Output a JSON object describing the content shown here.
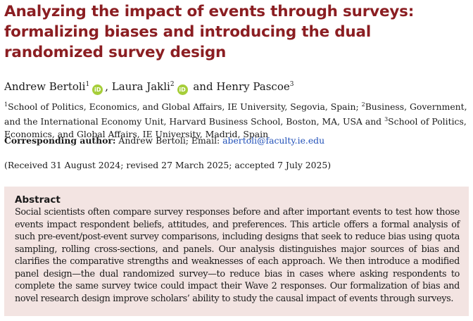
{
  "title": "Analyzing the impact of events through surveys: formalizing biases and introducing the dual randomized survey design",
  "authors": [
    {
      "name": "Andrew Bertoli",
      "sup": "1",
      "orcid": "iD",
      "sep": ", "
    },
    {
      "name": "Laura Jakli",
      "sup": "2",
      "orcid": "iD",
      "sep": " and "
    },
    {
      "name": "Henry Pascoe",
      "sup": "3",
      "orcid": "",
      "sep": ""
    }
  ],
  "affiliations": [
    {
      "sup": "1",
      "text": "School of Politics, Economics, and Global Affairs, IE University, Segovia, Spain; "
    },
    {
      "sup": "2",
      "text": "Business, Government, and the International Economy Unit, Harvard Business School, Boston, MA, USA and "
    },
    {
      "sup": "3",
      "text": "School of Politics, Economics, and Global Affairs, IE University, Madrid, Spain"
    }
  ],
  "corresponding": {
    "label": "Corresponding author:",
    "text": " Andrew Bertoli; Email: ",
    "email": "abertoli@faculty.ie.edu"
  },
  "received": "(Received 31 August 2024; revised 27 March 2025; accepted 7 July 2025)",
  "abstract": {
    "heading": "Abstract",
    "text": "Social scientists often compare survey responses before and after important events to test how those events impact respondent beliefs, attitudes, and preferences. This article offers a formal analysis of such pre-event/post-event survey comparisons, including designs that seek to reduce bias using quota sampling, rolling cross-sections, and panels. Our analysis distinguishes major sources of bias and clarifies the comparative strengths and weaknesses of each approach. We then introduce a modified panel design—the dual randomized survey—to reduce bias in cases where asking respondents to complete the same survey twice could impact their Wave 2 responses. Our formalization of bias and novel research design improve scholars’ ability to study the causal impact of events through surveys."
  },
  "colors": {
    "title": "#8b1e22",
    "abstract_background": "#f3e4e2",
    "orcid": "#a6ce39",
    "email_link": "#1f4fb8"
  },
  "icons": {
    "orcid": "orcid-icon"
  }
}
